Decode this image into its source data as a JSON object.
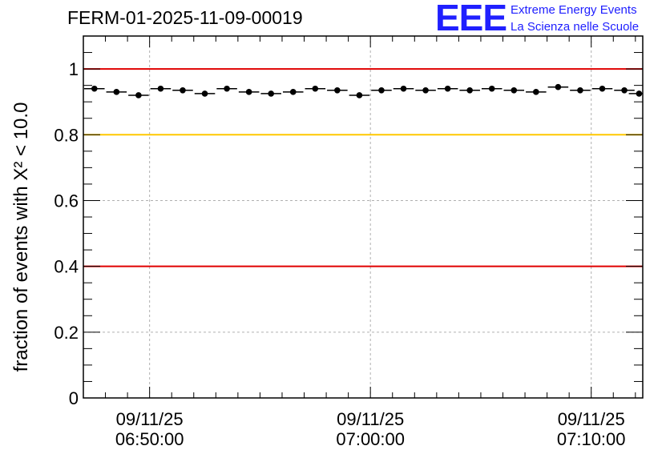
{
  "header": {
    "run_title": "FERM-01-2025-11-09-00019",
    "logo_mark": "EEE",
    "logo_line1": "Extreme Energy Events",
    "logo_line2": "La Scienza nelle Scuole"
  },
  "colors": {
    "threshold_red": "#e00000",
    "threshold_yellow": "#ffc800",
    "logo_blue": "#2020ff",
    "points": "#000000"
  },
  "chart_data": {
    "type": "scatter",
    "title": "FERM-01-2025-11-09-00019",
    "ylabel": "fraction of events with Χ² < 10.0",
    "xlabel": "",
    "ylim": [
      0,
      1.1
    ],
    "yticks": [
      0,
      0.2,
      0.4,
      0.6,
      0.8,
      1
    ],
    "ytick_labels": [
      "0",
      "0.2",
      "0.4",
      "0.6",
      "0.8",
      "1"
    ],
    "xlim": [
      "06:47:00",
      "07:12:20"
    ],
    "xtick_labels": [
      {
        "x": "06:50:00",
        "line1": "09/11/25",
        "line2": "06:50:00"
      },
      {
        "x": "07:00:00",
        "line1": "09/11/25",
        "line2": "07:00:00"
      },
      {
        "x": "07:10:00",
        "line1": "09/11/25",
        "line2": "07:10:00"
      }
    ],
    "grid": true,
    "reference_lines": [
      {
        "y": 1.0,
        "color": "red"
      },
      {
        "y": 0.8,
        "color": "yellow"
      },
      {
        "y": 0.4,
        "color": "red"
      }
    ],
    "bin_width_minutes": 1,
    "x": [
      "06:47:30",
      "06:48:30",
      "06:49:30",
      "06:50:30",
      "06:51:30",
      "06:52:30",
      "06:53:30",
      "06:54:30",
      "06:55:30",
      "06:56:30",
      "06:57:30",
      "06:58:30",
      "06:59:30",
      "07:00:30",
      "07:01:30",
      "07:02:30",
      "07:03:30",
      "07:04:30",
      "07:05:30",
      "07:06:30",
      "07:07:30",
      "07:08:30",
      "07:09:30",
      "07:10:30",
      "07:11:30",
      "07:12:10"
    ],
    "y": [
      0.94,
      0.93,
      0.92,
      0.94,
      0.935,
      0.925,
      0.94,
      0.93,
      0.925,
      0.93,
      0.94,
      0.935,
      0.92,
      0.935,
      0.94,
      0.935,
      0.94,
      0.935,
      0.94,
      0.935,
      0.93,
      0.945,
      0.935,
      0.94,
      0.935,
      0.925
    ]
  }
}
